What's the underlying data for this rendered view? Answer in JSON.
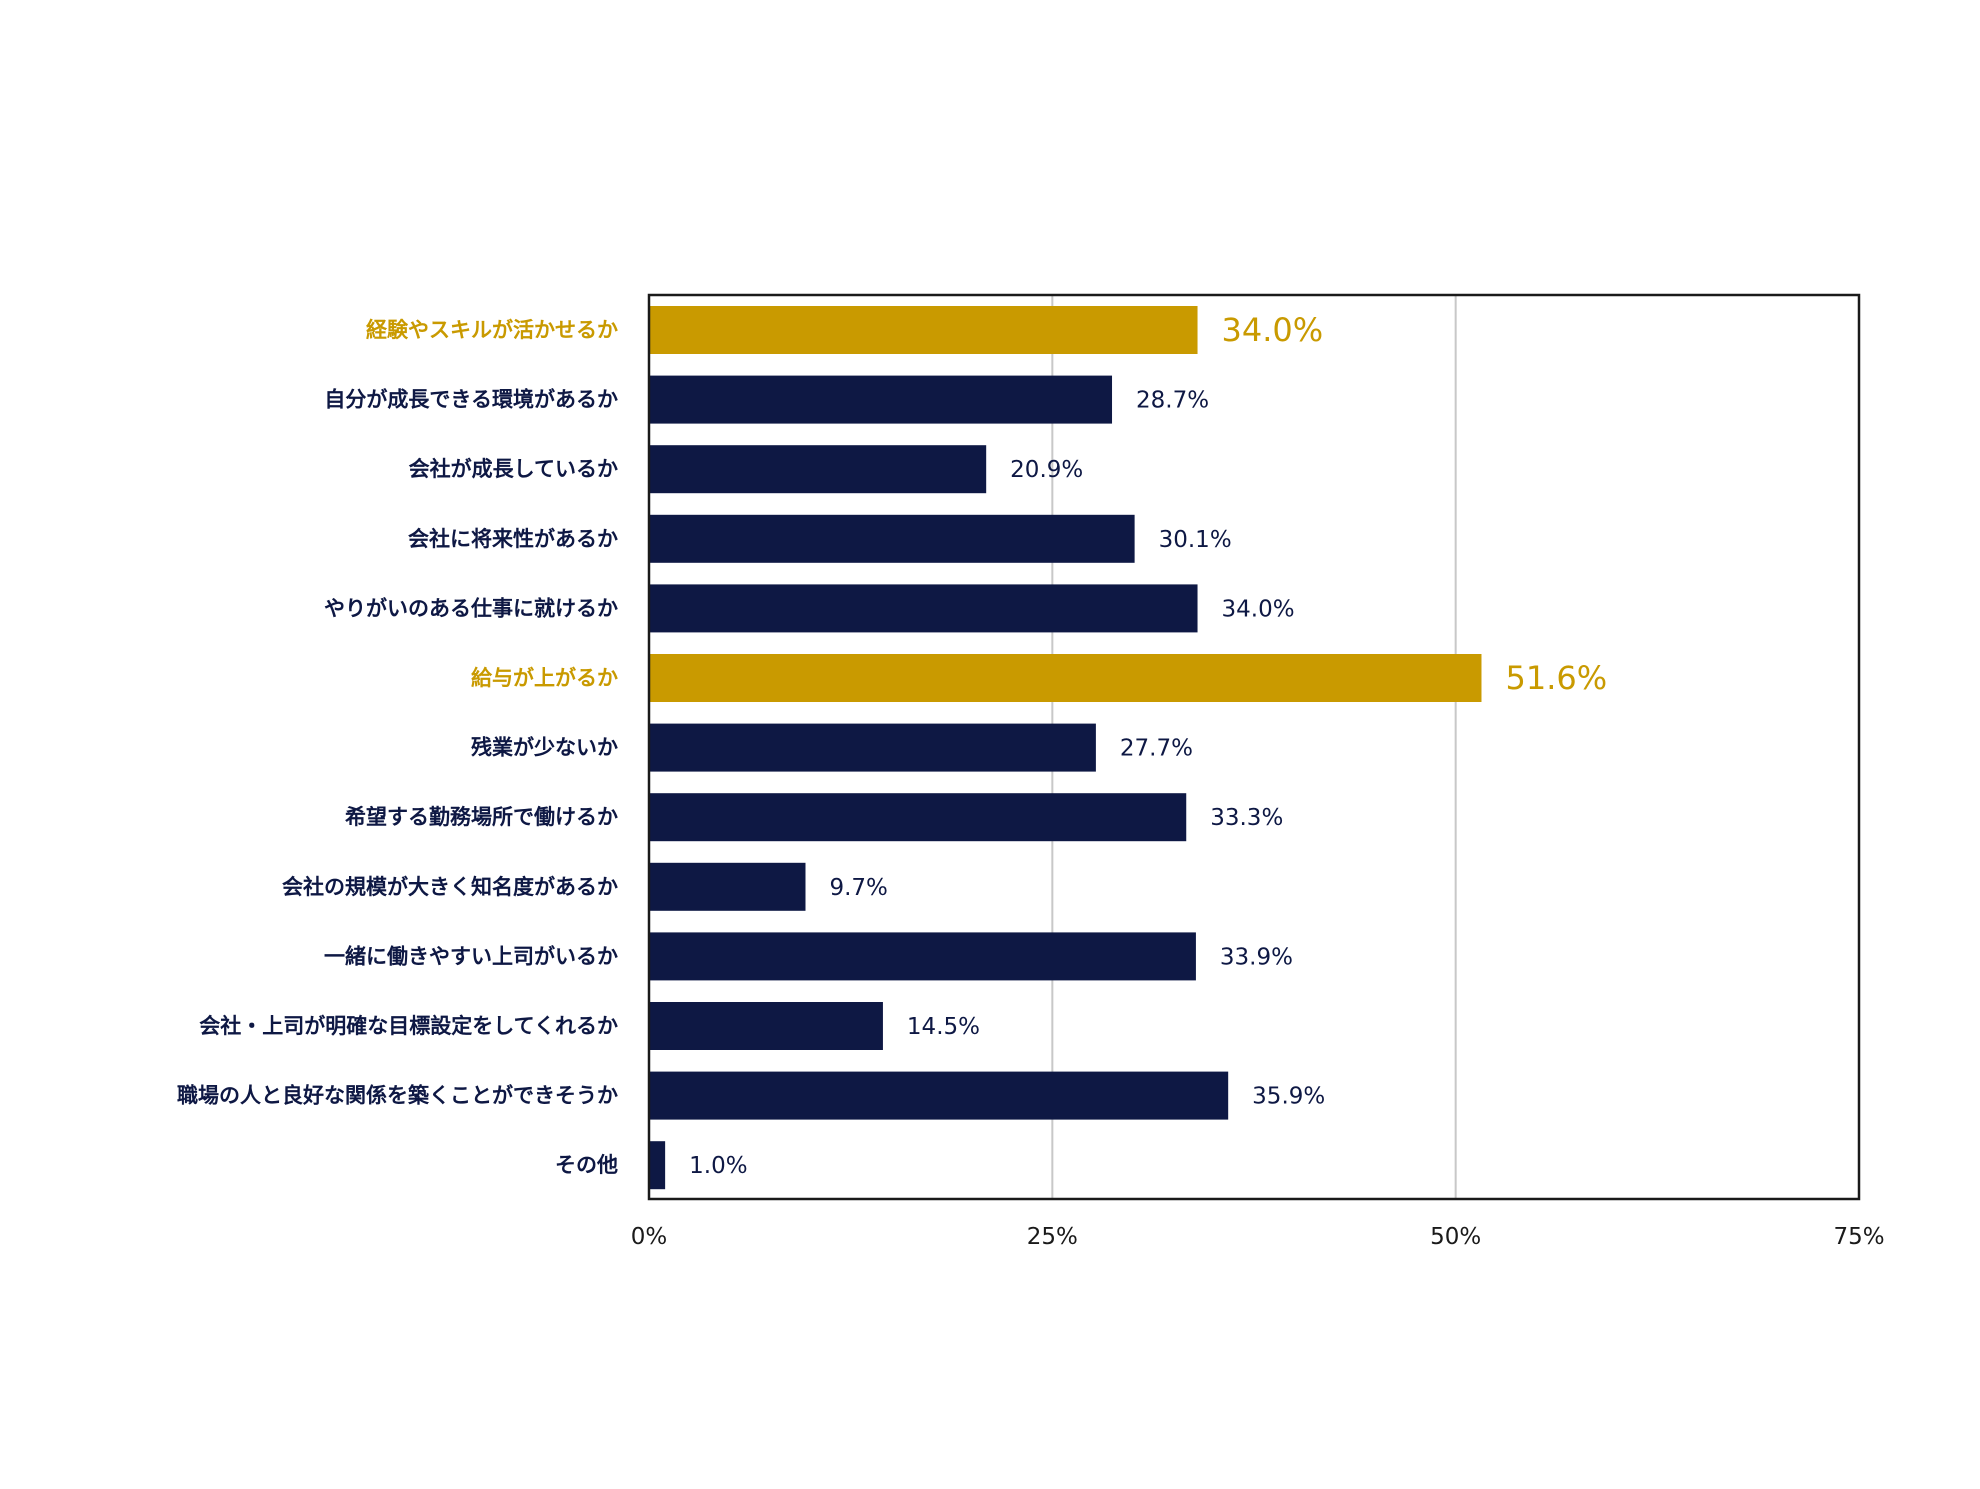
{
  "chart_data": {
    "type": "bar",
    "orientation": "horizontal",
    "title": "",
    "xlabel": "",
    "ylabel": "",
    "xlim": [
      0,
      75
    ],
    "x_ticks": [
      0,
      25,
      50,
      75
    ],
    "x_tick_labels": [
      "0%",
      "25%",
      "50%",
      "75%"
    ],
    "grid": true,
    "categories": [
      "経験やスキルが活かせるか",
      "自分が成長できる環境があるか",
      "会社が成長しているか",
      "会社に将来性があるか",
      "やりがいのある仕事に就けるか",
      "給与が上がるか",
      "残業が少ないか",
      "希望する勤務場所で働けるか",
      "会社の規模が大きく知名度があるか",
      "一緒に働きやすい上司がいるか",
      "会社・上司が明確な目標設定をしてくれるか",
      "職場の人と良好な関係を築くことができそうか",
      "その他"
    ],
    "values": [
      34.0,
      28.7,
      20.9,
      30.1,
      34.0,
      51.6,
      27.7,
      33.3,
      9.7,
      33.9,
      14.5,
      35.9,
      1.0
    ],
    "value_labels": [
      "34.0%",
      "28.7%",
      "20.9%",
      "30.1%",
      "34.0%",
      "51.6%",
      "27.7%",
      "33.3%",
      "9.7%",
      "33.9%",
      "14.5%",
      "35.9%",
      "1.0%"
    ],
    "highlighted": [
      true,
      false,
      false,
      false,
      false,
      true,
      false,
      false,
      false,
      false,
      false,
      false,
      false
    ]
  },
  "colors": {
    "bar": "#0e1844",
    "highlight": "#c99a00",
    "label": "#0e1844",
    "grid": "#c8c8c8",
    "frame": "#1a1a1a",
    "tick": "#1a1a1a"
  }
}
